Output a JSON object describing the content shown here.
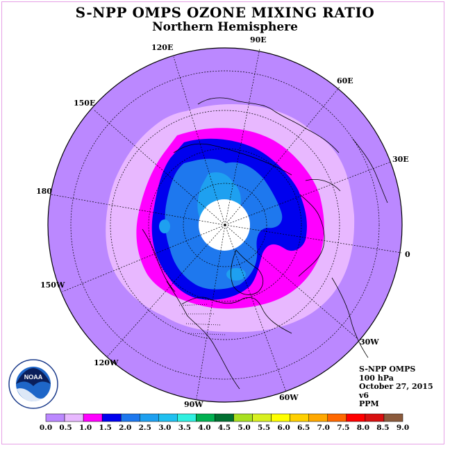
{
  "title": "S-NPP OMPS OZONE MIXING RATIO",
  "subtitle": "Northern Hemisphere",
  "longitude_labels": {
    "lon_90e": "90E",
    "lon_60e": "60E",
    "lon_30e": "30E",
    "lon_0": "0",
    "lon_30w": "30W",
    "lon_60w": "60W",
    "lon_90w": "90W",
    "lon_120w": "120W",
    "lon_150w": "150W",
    "lon_180": "180",
    "lon_150e": "150E",
    "lon_120e": "120E"
  },
  "info": {
    "instrument": "S-NPP OMPS",
    "level": "100 hPa",
    "date": "October 27, 2015",
    "version": "v6",
    "units": "PPM"
  },
  "logo_text": "NOAA",
  "logo_ring_text": "NATIONAL OCEANIC AND ATMOSPHERIC ADMINISTRATION · U.S. DEPARTMENT OF COMMERCE",
  "colorbar": {
    "ticks": [
      "0.0",
      "0.5",
      "1.0",
      "1.5",
      "2.0",
      "2.5",
      "3.0",
      "3.5",
      "4.0",
      "4.5",
      "5.0",
      "5.5",
      "6.0",
      "6.5",
      "7.0",
      "7.5",
      "8.0",
      "8.5",
      "9.0"
    ],
    "colors": [
      "#bb88ff",
      "#e8b8ff",
      "#ff00ff",
      "#0000ee",
      "#1e78ee",
      "#1ea0f0",
      "#20c0f0",
      "#30f0e0",
      "#00b050",
      "#007030",
      "#a8e020",
      "#d8f020",
      "#ffff00",
      "#ffd000",
      "#ffa800",
      "#ff6800",
      "#ff0000",
      "#d81010",
      "#8b5a3c"
    ]
  },
  "map": {
    "colors": {
      "band_0_0.5": "#bb88ff",
      "band_0.5_1.0": "#e8b8ff",
      "band_1.0_1.5": "#ff00ff",
      "band_1.5_2.0": "#0000ee",
      "band_2.0_2.5": "#1e78ee",
      "band_2.5_3.0": "#1ea0f0",
      "no_data": "#ffffff"
    }
  }
}
